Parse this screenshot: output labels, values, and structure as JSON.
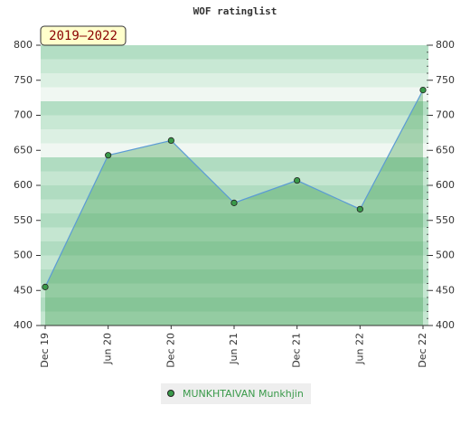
{
  "chart_data": {
    "type": "line",
    "title": "WOF ratinglist",
    "annotation": "2019–2022",
    "categories": [
      "Dec 19",
      "Jun 20",
      "Dec 20",
      "Jun 21",
      "Dec 21",
      "Jun 22",
      "Dec 22"
    ],
    "series": [
      {
        "name": "MUNKHTAIVAN Munkhjin",
        "color": "#3a9a4a",
        "values": [
          455,
          643,
          664,
          575,
          607,
          566,
          736
        ]
      }
    ],
    "ylim": [
      400,
      800
    ],
    "yticks": [
      400,
      450,
      500,
      550,
      600,
      650,
      700,
      750,
      800
    ]
  }
}
